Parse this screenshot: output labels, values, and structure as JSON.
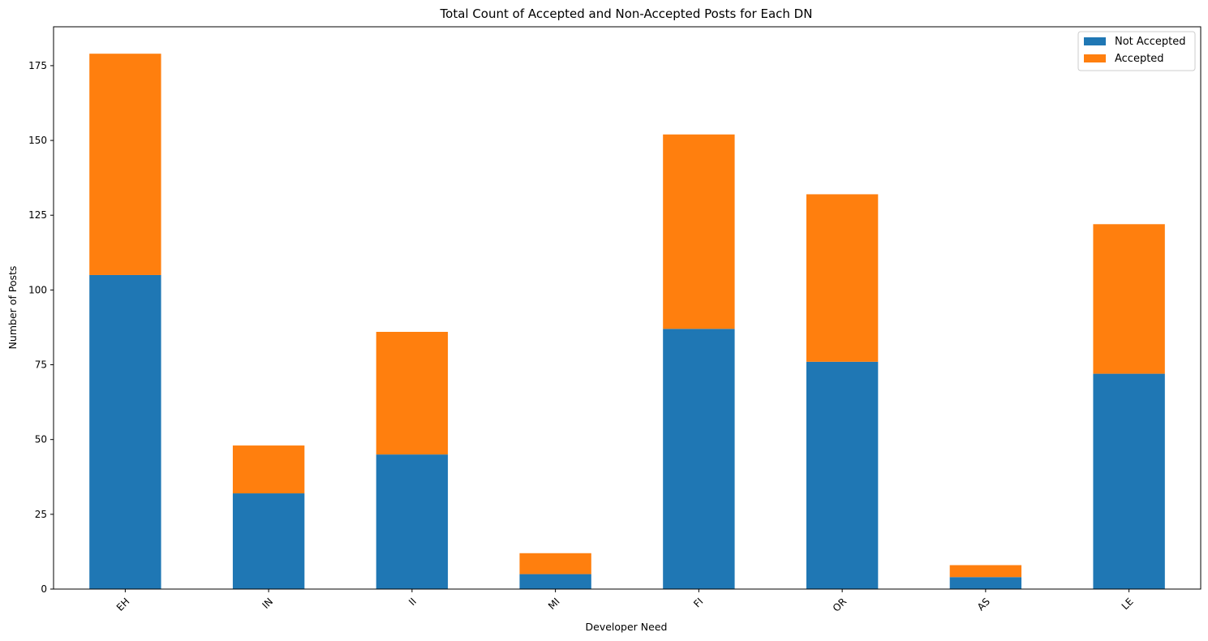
{
  "chart_data": {
    "type": "bar",
    "stacked": true,
    "title": "Total Count of Accepted and Non-Accepted Posts for Each DN",
    "xlabel": "Developer Need",
    "ylabel": "Number of Posts",
    "categories": [
      "EH",
      "IN",
      "II",
      "MI",
      "FI",
      "OR",
      "AS",
      "LE"
    ],
    "series": [
      {
        "name": "Not Accepted",
        "color": "#1f77b4",
        "values": [
          105,
          32,
          45,
          5,
          87,
          76,
          4,
          72
        ]
      },
      {
        "name": "Accepted",
        "color": "#ff7f0e",
        "values": [
          74,
          16,
          41,
          7,
          65,
          56,
          4,
          50
        ]
      }
    ],
    "yticks": [
      0,
      25,
      50,
      75,
      100,
      125,
      150,
      175
    ],
    "ylim": [
      0,
      188
    ],
    "grid": false,
    "legend_position": "top-right",
    "xtick_rotation": 45
  }
}
